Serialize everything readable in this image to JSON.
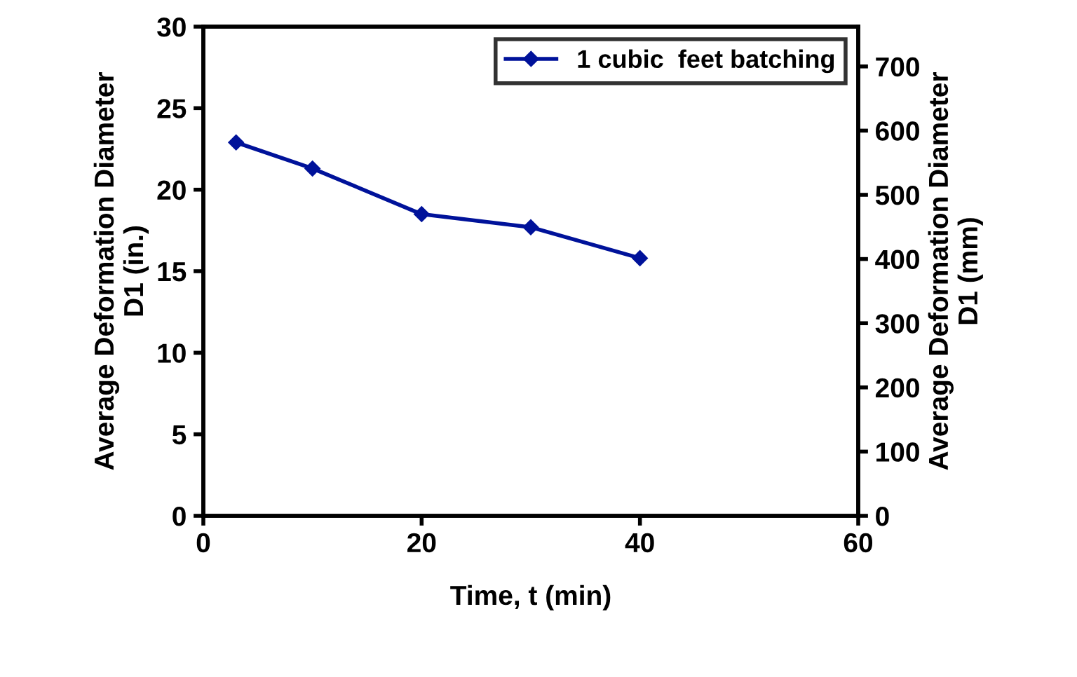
{
  "chart_data": {
    "type": "line",
    "xlabel": "Time, t (min)",
    "ylabel": "Average Deformation Diameter\nD1 (in.)",
    "y2label": "Average Deformation Diameter\nD1 (mm)",
    "series": [
      {
        "name": "1 cubic  feet batching",
        "color": "#00129a",
        "x": [
          3,
          10,
          20,
          30,
          40
        ],
        "values": [
          22.9,
          21.3,
          18.5,
          17.7,
          15.8
        ]
      }
    ],
    "xlim": [
      0,
      60
    ],
    "xticks": [
      0,
      20,
      40,
      60
    ],
    "ylim": [
      0,
      30
    ],
    "yticks": [
      0,
      5,
      10,
      15,
      20,
      25,
      30
    ],
    "y2lim": [
      0,
      762
    ],
    "y2ticks": [
      0,
      100,
      200,
      300,
      400,
      500,
      600,
      700
    ],
    "marker": "diamond",
    "line_style": "solid",
    "grid": false,
    "legend": "top right"
  }
}
